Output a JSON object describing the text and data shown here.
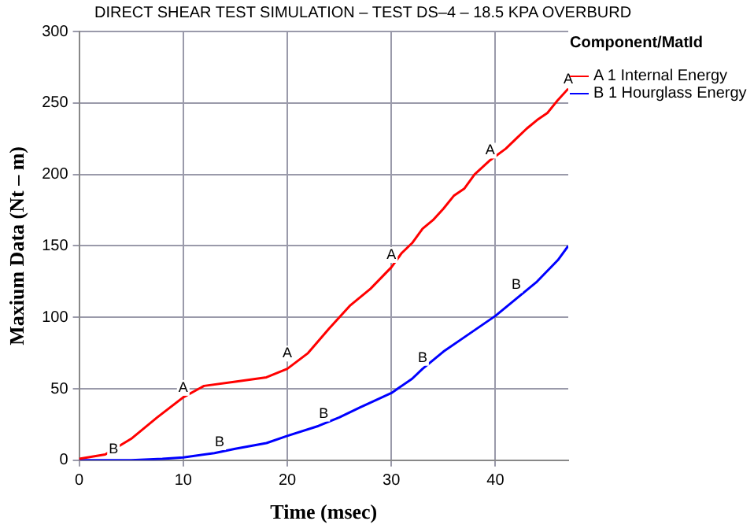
{
  "chart_data": {
    "type": "line",
    "title": "DIRECT SHEAR TEST SIMULATION – TEST DS–4 – 18.5 KPA OVERBURD",
    "xlabel": "Time (msec)",
    "ylabel": "Maxium Data (Nt – m)",
    "legend_title": "Component/MatId",
    "legend": "right",
    "grid": true,
    "marker": "none",
    "line_style": "solid",
    "xlim": [
      0,
      47
    ],
    "xticks": [
      0,
      10,
      20,
      30,
      40
    ],
    "ylim": [
      0,
      300
    ],
    "yticks": [
      0,
      50,
      100,
      150,
      200,
      250,
      300
    ],
    "series": [
      {
        "name": "A 1 Internal Energy",
        "color": "#ff0000",
        "x": [
          0,
          2.5,
          5,
          7.5,
          10,
          12,
          15,
          18,
          20,
          22,
          24,
          26,
          28,
          30,
          31,
          32,
          33,
          34,
          35,
          36,
          37,
          38,
          39.5,
          41,
          42,
          43,
          44,
          45,
          46,
          47
        ],
        "values": [
          1,
          4,
          15,
          30,
          44,
          52,
          55,
          58,
          64,
          75,
          92,
          108,
          120,
          135,
          145,
          152,
          162,
          168,
          176,
          185,
          190,
          200,
          210,
          218,
          225,
          232,
          238,
          243,
          252,
          260
        ]
      },
      {
        "name": "B 1 Hourglass Energy",
        "color": "#0000ff",
        "x": [
          0,
          5,
          8,
          10,
          13,
          15,
          18,
          20,
          23,
          25,
          27,
          30,
          32,
          33,
          35,
          37,
          40,
          42,
          44,
          46,
          47
        ],
        "values": [
          0,
          0,
          1,
          2,
          5,
          8,
          12,
          17,
          24,
          30,
          37,
          47,
          57,
          64,
          76,
          86,
          101,
          113,
          125,
          140,
          150
        ]
      }
    ],
    "annotations": [
      {
        "text": "A",
        "x": 10,
        "y": 44
      },
      {
        "text": "A",
        "x": 20,
        "y": 68
      },
      {
        "text": "A",
        "x": 30,
        "y": 137
      },
      {
        "text": "A",
        "x": 39.5,
        "y": 210
      },
      {
        "text": "A",
        "x": 47,
        "y": 260
      },
      {
        "text": "B",
        "x": 3.3,
        "y": 1
      },
      {
        "text": "B",
        "x": 13.5,
        "y": 6
      },
      {
        "text": "B",
        "x": 23.5,
        "y": 26
      },
      {
        "text": "B",
        "x": 33,
        "y": 65
      },
      {
        "text": "B",
        "x": 42,
        "y": 116
      }
    ]
  }
}
